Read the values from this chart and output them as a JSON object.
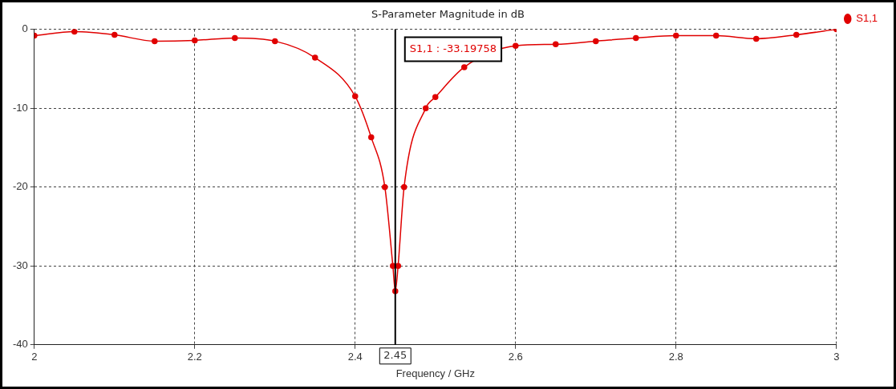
{
  "chart_data": {
    "type": "line",
    "title": "S-Parameter Magnitude in dB",
    "xlabel": "Frequency / GHz",
    "x": [
      2,
      2.05,
      2.1,
      2.15,
      2.2,
      2.25,
      2.3,
      2.35,
      2.4,
      2.42,
      2.437,
      2.447,
      2.45,
      2.4535,
      2.461,
      2.488,
      2.5,
      2.536,
      2.55,
      2.6,
      2.65,
      2.7,
      2.75,
      2.8,
      2.85,
      2.9,
      2.95,
      3
    ],
    "series": [
      {
        "name": "S1,1",
        "color": "#e00000",
        "values": [
          -0.8,
          -0.3,
          -0.7,
          -1.5,
          -1.4,
          -1.1,
          -1.5,
          -3.6,
          -8.5,
          -13.7,
          -20,
          -30,
          -33.2,
          -30,
          -20,
          -10,
          -8.6,
          -4.8,
          null,
          -2.1,
          -1.9,
          -1.5,
          -1.1,
          -0.8,
          -0.8,
          -1.2,
          -0.7,
          0
        ]
      }
    ],
    "xlim": [
      2,
      3
    ],
    "xticks": [
      2,
      2.2,
      2.4,
      2.6,
      2.8,
      3
    ],
    "ylim": [
      -40,
      0
    ],
    "yticks": [
      -40,
      -30,
      -20,
      -10,
      0
    ],
    "grid": true,
    "legend": "right",
    "marker": "circle",
    "line_style": "solid",
    "ref_lines": [
      {
        "axis": "x",
        "value": 2.45,
        "label": "2.45",
        "color": "#000000"
      }
    ],
    "annotations": [
      "S1,1 : -33.19758"
    ]
  }
}
